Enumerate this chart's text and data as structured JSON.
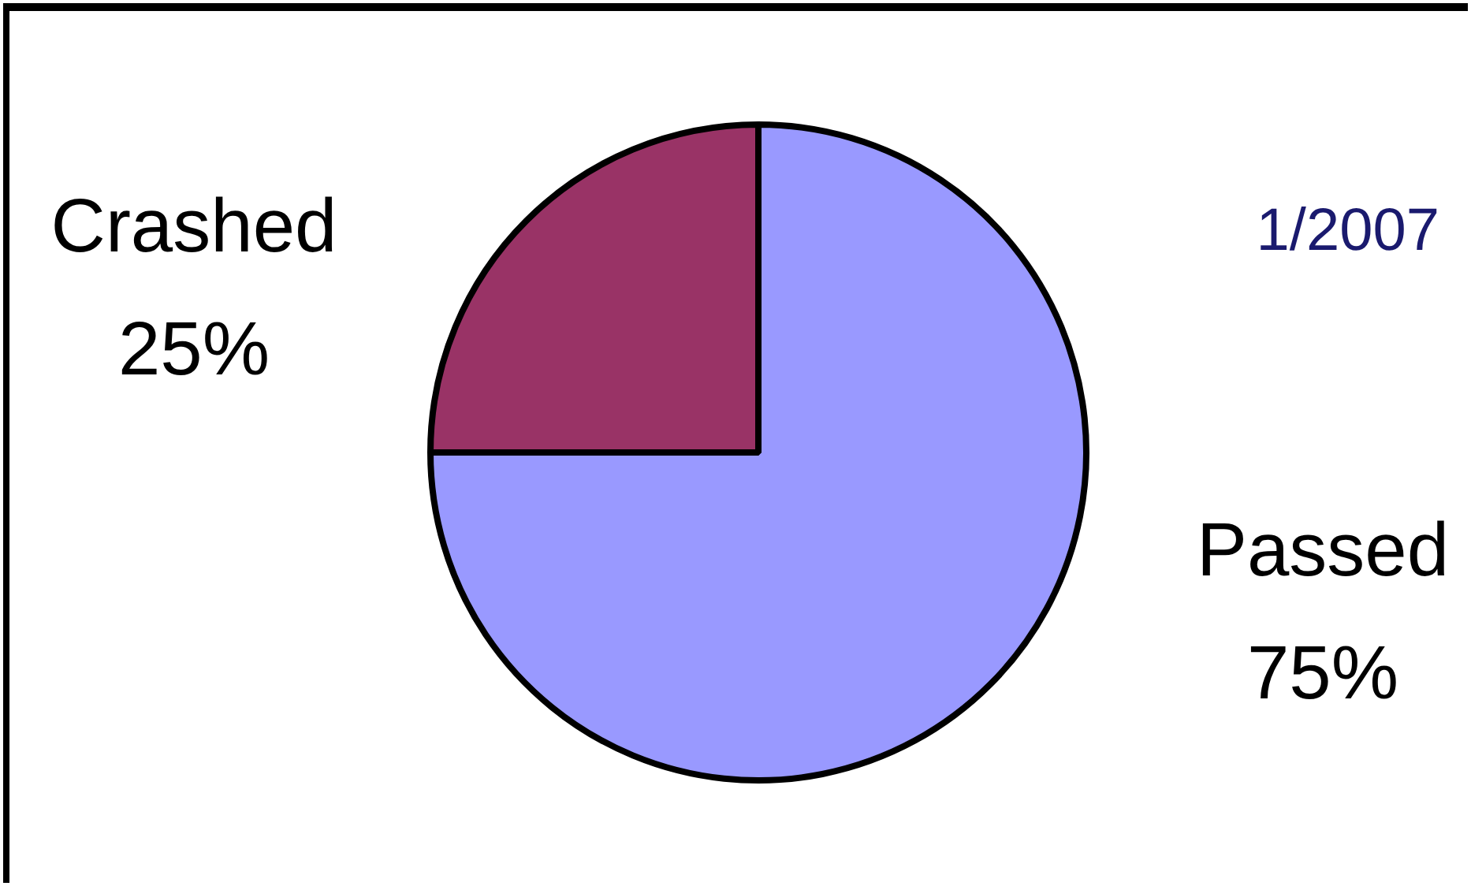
{
  "chart_data": {
    "type": "pie",
    "categories": [
      "Passed",
      "Crashed"
    ],
    "values": [
      75,
      25
    ],
    "colors": [
      "#9999ff",
      "#993366"
    ],
    "value_labels": [
      "75%",
      "25%"
    ],
    "legend": false,
    "annotations": [
      "1/2007"
    ]
  }
}
